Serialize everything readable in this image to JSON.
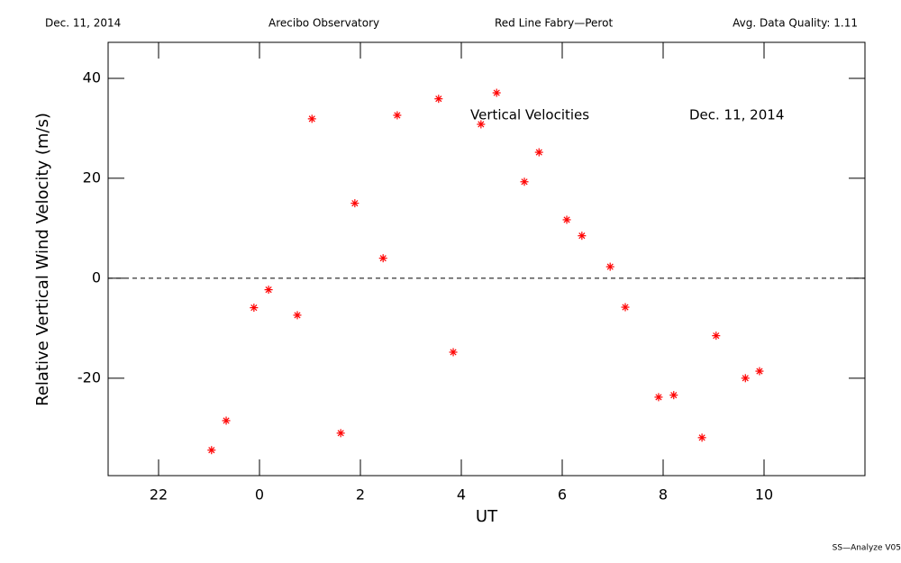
{
  "chart_data": {
    "type": "scatter",
    "header": [
      "Dec. 11, 2014",
      "Arecibo Observatory",
      "Red Line Fabry—Perot",
      "Avg. Data Quality: 1.11"
    ],
    "annotations": [
      "Vertical Velocities",
      "Dec. 11, 2014"
    ],
    "footer": "SS—Analyze V05",
    "xlabel": "UT",
    "ylabel": "Relative Vertical Wind Velocity (m/s)",
    "xlim": [
      -3,
      12
    ],
    "ylim": [
      -39.5,
      47.2
    ],
    "xticks": [
      {
        "value": -2,
        "label": "22"
      },
      0,
      2,
      4,
      6,
      8,
      10
    ],
    "yticks": [
      -20,
      0,
      20,
      40
    ],
    "hline": 0,
    "series": [
      {
        "color": "#ff0000",
        "x": [
          -0.95,
          -0.66,
          -0.11,
          0.18,
          0.75,
          1.04,
          1.61,
          1.89,
          2.45,
          2.73,
          3.55,
          3.84,
          4.39,
          4.7,
          5.25,
          5.54,
          6.09,
          6.39,
          6.95,
          7.25,
          7.91,
          8.21,
          8.77,
          9.05,
          9.63,
          9.91
        ],
        "values": [
          -34.4,
          -28.5,
          -5.9,
          -2.3,
          -7.4,
          31.9,
          -31.0,
          15.0,
          4.0,
          32.6,
          35.9,
          -14.8,
          30.8,
          37.1,
          19.3,
          25.2,
          11.7,
          8.5,
          2.3,
          -5.8,
          -23.8,
          -23.4,
          -31.9,
          -11.5,
          -20.0,
          -18.6
        ]
      }
    ]
  }
}
